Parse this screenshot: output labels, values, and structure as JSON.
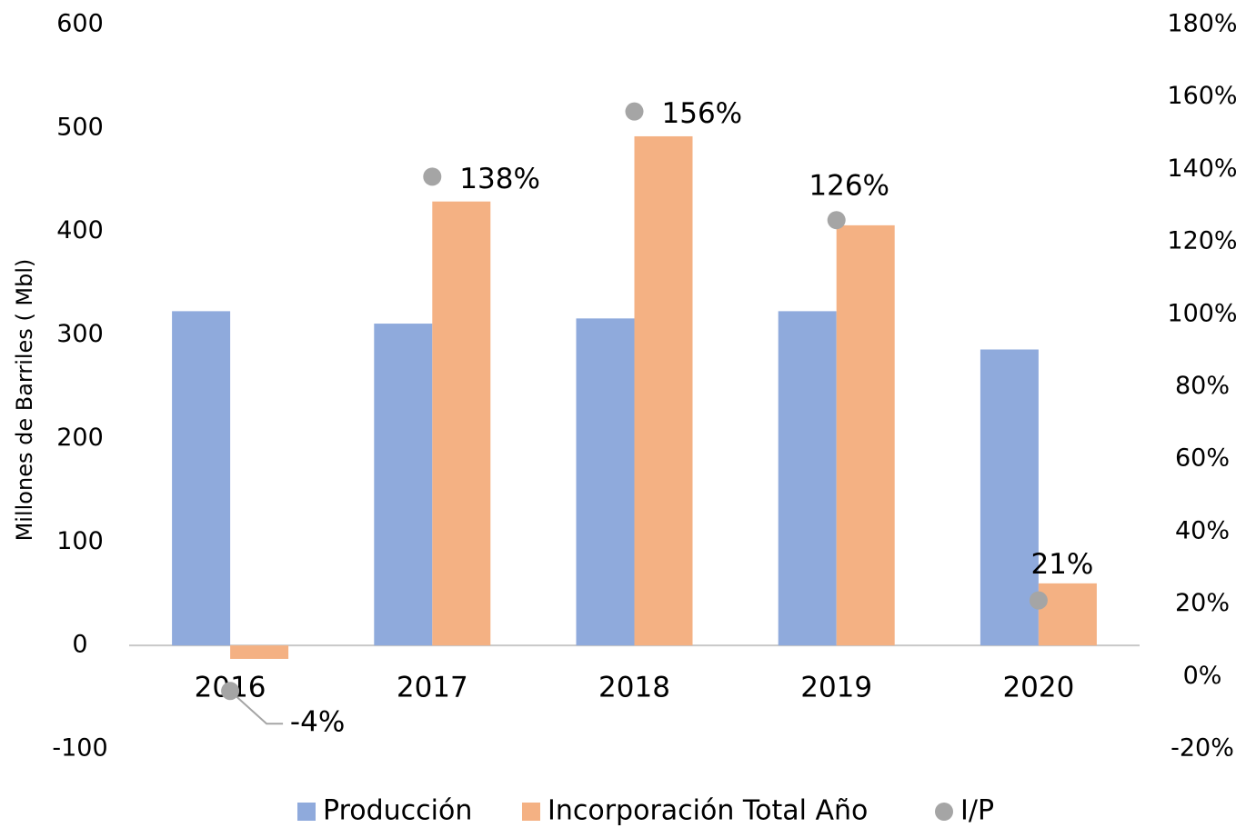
{
  "chart_data": {
    "type": "bar",
    "y_label": "Millones de Barriles ( Mbl)",
    "categories": [
      "2016",
      "2017",
      "2018",
      "2019",
      "2020"
    ],
    "series": [
      {
        "name": "Producción",
        "color": "#8faadc",
        "values": [
          323,
          311,
          316,
          323,
          286
        ]
      },
      {
        "name": "Incorporación Total Año",
        "color": "#f4b183",
        "values": [
          -13,
          429,
          492,
          406,
          60
        ]
      },
      {
        "name": "I/P",
        "color": "#a5a5a5",
        "type": "scatter",
        "axis": "y2",
        "values": [
          -4,
          138,
          156,
          126,
          21
        ],
        "value_labels": [
          "-4%",
          "138%",
          "156%",
          "126%",
          "21%"
        ]
      }
    ],
    "ylim": [
      -100,
      600
    ],
    "yticks": [
      -100,
      0,
      100,
      200,
      300,
      400,
      500,
      600
    ],
    "y2lim": [
      -20,
      180
    ],
    "y2ticks": [
      {
        "value": -20,
        "label": "-20%"
      },
      {
        "value": 0,
        "label": "0%"
      },
      {
        "value": 20,
        "label": "20%"
      },
      {
        "value": 40,
        "label": "40%"
      },
      {
        "value": 60,
        "label": "60%"
      },
      {
        "value": 80,
        "label": "80%"
      },
      {
        "value": 100,
        "label": "100%"
      },
      {
        "value": 120,
        "label": "120%"
      },
      {
        "value": 140,
        "label": "140%"
      },
      {
        "value": 160,
        "label": "160%"
      },
      {
        "value": 180,
        "label": "180%"
      }
    ],
    "legend": "bottom"
  }
}
